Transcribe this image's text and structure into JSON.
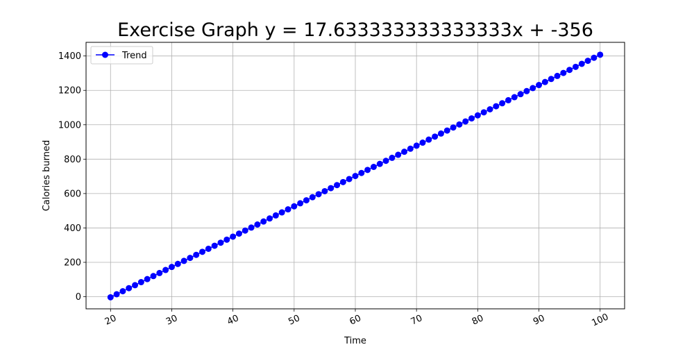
{
  "chart_data": {
    "type": "line",
    "title": "Exercise Graph y = 17.633333333333333x + -356",
    "xlabel": "Time",
    "ylabel": "Calories burned",
    "xlim": [
      16.0,
      104.0
    ],
    "ylim": [
      -70.5,
      1479.4
    ],
    "x_ticks": [
      20,
      30,
      40,
      50,
      60,
      70,
      80,
      90,
      100
    ],
    "y_ticks": [
      0,
      200,
      400,
      600,
      800,
      1000,
      1200,
      1400
    ],
    "grid": true,
    "legend_position": "upper-left",
    "x_tick_rotation_deg": 25,
    "fit": {
      "slope": 17.633333333333333,
      "intercept": -356
    },
    "series": [
      {
        "name": "Trend",
        "color": "#0000ff",
        "marker": "circle",
        "x": [
          20,
          21,
          22,
          23,
          24,
          25,
          26,
          27,
          28,
          29,
          30,
          31,
          32,
          33,
          34,
          35,
          36,
          37,
          38,
          39,
          40,
          41,
          42,
          43,
          44,
          45,
          46,
          47,
          48,
          49,
          50,
          51,
          52,
          53,
          54,
          55,
          56,
          57,
          58,
          59,
          60,
          61,
          62,
          63,
          64,
          65,
          66,
          67,
          68,
          69,
          70,
          71,
          72,
          73,
          74,
          75,
          76,
          77,
          78,
          79,
          80,
          81,
          82,
          83,
          84,
          85,
          86,
          87,
          88,
          89,
          90,
          91,
          92,
          93,
          94,
          95,
          96,
          97,
          98,
          99,
          100
        ],
        "y": [
          -3.3,
          14.3,
          31.9,
          49.6,
          67.2,
          84.8,
          102.5,
          120.1,
          137.7,
          155.4,
          173.0,
          190.6,
          208.3,
          225.9,
          243.5,
          261.2,
          278.8,
          296.4,
          314.1,
          331.7,
          349.3,
          367.0,
          384.6,
          402.2,
          419.9,
          437.5,
          455.1,
          472.8,
          490.4,
          508.0,
          525.7,
          543.3,
          560.9,
          578.6,
          596.2,
          613.8,
          631.5,
          649.1,
          666.7,
          684.4,
          702.0,
          719.6,
          737.3,
          754.9,
          772.5,
          790.2,
          807.8,
          825.4,
          843.1,
          860.7,
          878.3,
          896.0,
          913.6,
          931.2,
          948.9,
          966.5,
          984.1,
          1001.8,
          1019.4,
          1037.0,
          1054.7,
          1072.3,
          1089.9,
          1107.6,
          1125.2,
          1142.8,
          1160.5,
          1178.1,
          1195.7,
          1213.4,
          1231.0,
          1248.6,
          1266.3,
          1283.9,
          1301.5,
          1319.2,
          1336.8,
          1354.4,
          1372.1,
          1389.7,
          1407.3
        ]
      }
    ]
  }
}
